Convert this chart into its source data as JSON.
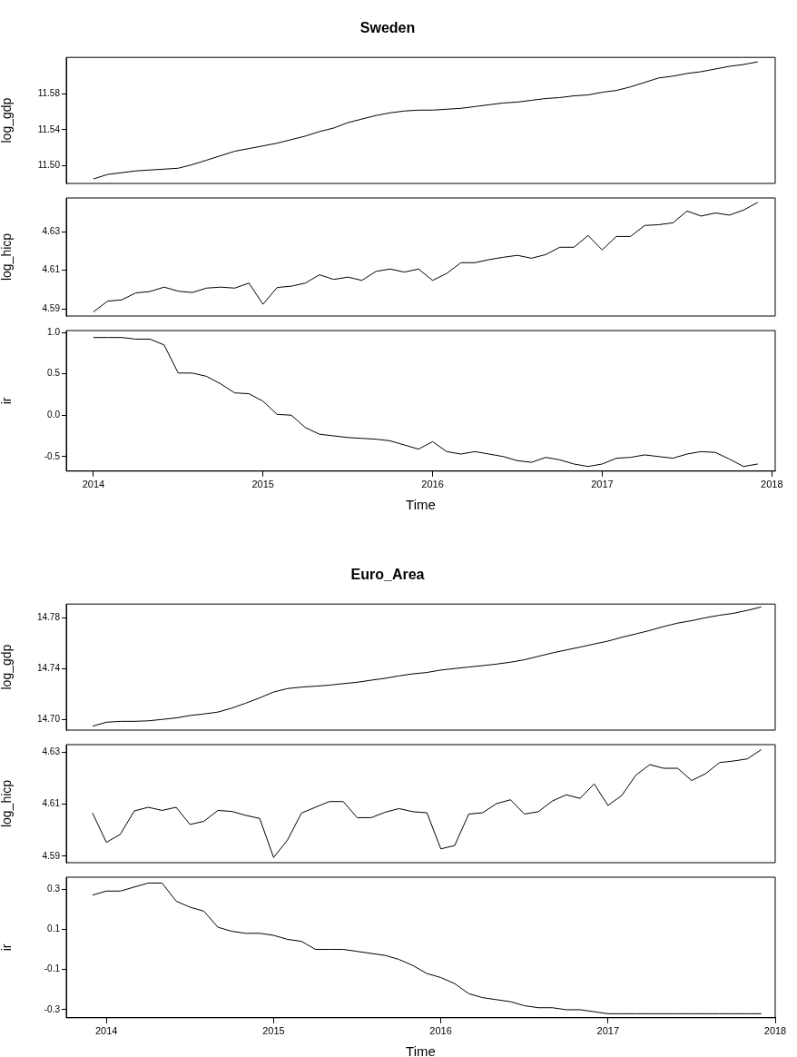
{
  "chart_data": [
    {
      "type": "line",
      "title": "Sweden",
      "ylabel": "log_gdp",
      "color": "#000000",
      "marker": "none",
      "tick_labels": "y",
      "x": [
        2014,
        2014.083,
        2014.167,
        2014.25,
        2014.333,
        2014.417,
        2014.5,
        2014.583,
        2014.667,
        2014.75,
        2014.833,
        2014.917,
        2015,
        2015.083,
        2015.167,
        2015.25,
        2015.333,
        2015.417,
        2015.5,
        2015.583,
        2015.667,
        2015.75,
        2015.833,
        2015.917,
        2016,
        2016.083,
        2016.167,
        2016.25,
        2016.333,
        2016.417,
        2016.5,
        2016.583,
        2016.667,
        2016.75,
        2016.833,
        2016.917,
        2017,
        2017.083,
        2017.167,
        2017.25,
        2017.333,
        2017.417,
        2017.5,
        2017.583,
        2017.667,
        2017.75,
        2017.833,
        2017.917
      ],
      "values": [
        11.485,
        11.49,
        11.492,
        11.494,
        11.495,
        11.496,
        11.497,
        11.501,
        11.506,
        11.511,
        11.516,
        11.519,
        11.522,
        11.525,
        11.529,
        11.533,
        11.538,
        11.542,
        11.548,
        11.552,
        11.556,
        11.559,
        11.561,
        11.562,
        11.562,
        11.563,
        11.564,
        11.566,
        11.568,
        11.57,
        11.571,
        11.573,
        11.575,
        11.576,
        11.578,
        11.579,
        11.582,
        11.584,
        11.588,
        11.593,
        11.598,
        11.6,
        11.603,
        11.605,
        11.608,
        11.611,
        11.613,
        11.616
      ],
      "xlim": [
        2013.84,
        2018.02
      ],
      "xticks": [
        2014,
        2015,
        2016,
        2017,
        2018
      ],
      "ylim": [
        11.48,
        11.621
      ],
      "yticks": [
        {
          "value": 11.5,
          "label": "11.50"
        },
        11.54,
        11.58
      ]
    },
    {
      "type": "line",
      "ylabel": "log_hicp",
      "color": "#000000",
      "marker": "none",
      "tick_labels": "y",
      "x": [
        2014,
        2014.083,
        2014.167,
        2014.25,
        2014.333,
        2014.417,
        2014.5,
        2014.583,
        2014.667,
        2014.75,
        2014.833,
        2014.917,
        2015,
        2015.083,
        2015.167,
        2015.25,
        2015.333,
        2015.417,
        2015.5,
        2015.583,
        2015.667,
        2015.75,
        2015.833,
        2015.917,
        2016,
        2016.083,
        2016.167,
        2016.25,
        2016.333,
        2016.417,
        2016.5,
        2016.583,
        2016.667,
        2016.75,
        2016.833,
        2016.917,
        2017,
        2017.083,
        2017.167,
        2017.25,
        2017.333,
        2017.417,
        2017.5,
        2017.583,
        2017.667,
        2017.75,
        2017.833,
        2017.917
      ],
      "values": [
        4.5884,
        4.594,
        4.5947,
        4.5983,
        4.599,
        4.6013,
        4.5992,
        4.5985,
        4.6008,
        4.6013,
        4.6008,
        4.6034,
        4.5924,
        4.6011,
        4.6018,
        4.6034,
        4.6077,
        4.6053,
        4.6065,
        4.6048,
        4.6095,
        4.6107,
        4.6091,
        4.6107,
        4.6048,
        4.6084,
        4.614,
        4.614,
        4.6156,
        4.6168,
        4.6178,
        4.6163,
        4.6182,
        4.622,
        4.622,
        4.6281,
        4.6206,
        4.6276,
        4.6276,
        4.6333,
        4.6337,
        4.6347,
        4.6408,
        4.6382,
        4.6398,
        4.6387,
        4.6413,
        4.6453
      ],
      "xlim": [
        2013.84,
        2018.02
      ],
      "xticks": [
        2014,
        2015,
        2016,
        2017,
        2018
      ],
      "ylim": [
        4.5863,
        4.6476
      ],
      "yticks": [
        4.59,
        4.61,
        4.63
      ]
    },
    {
      "type": "line",
      "ylabel": "ir",
      "xlabel": "Time",
      "color": "#000000",
      "marker": "none",
      "x": [
        2014,
        2014.083,
        2014.167,
        2014.25,
        2014.333,
        2014.417,
        2014.5,
        2014.583,
        2014.667,
        2014.75,
        2014.833,
        2014.917,
        2015,
        2015.083,
        2015.167,
        2015.25,
        2015.333,
        2015.417,
        2015.5,
        2015.583,
        2015.667,
        2015.75,
        2015.833,
        2015.917,
        2016,
        2016.083,
        2016.167,
        2016.25,
        2016.333,
        2016.417,
        2016.5,
        2016.583,
        2016.667,
        2016.75,
        2016.833,
        2016.917,
        2017,
        2017.083,
        2017.167,
        2017.25,
        2017.333,
        2017.417,
        2017.5,
        2017.583,
        2017.667,
        2017.75,
        2017.833,
        2017.917
      ],
      "values": [
        0.94,
        0.94,
        0.94,
        0.92,
        0.92,
        0.85,
        0.51,
        0.51,
        0.47,
        0.38,
        0.27,
        0.26,
        0.17,
        0.01,
        0.0,
        -0.15,
        -0.23,
        -0.25,
        -0.27,
        -0.28,
        -0.29,
        -0.31,
        -0.36,
        -0.41,
        -0.32,
        -0.44,
        -0.47,
        -0.44,
        -0.47,
        -0.5,
        -0.55,
        -0.57,
        -0.51,
        -0.54,
        -0.59,
        -0.62,
        -0.59,
        -0.52,
        -0.51,
        -0.48,
        -0.5,
        -0.52,
        -0.47,
        -0.44,
        -0.45,
        -0.53,
        -0.62,
        -0.59
      ],
      "xlim": [
        2013.84,
        2018.02
      ],
      "xticks": [
        2014,
        2015,
        2016,
        2017,
        2018
      ],
      "ylim": [
        -0.676,
        1.024
      ],
      "yticks": [
        {
          "value": -0.5,
          "label": "-0.5"
        },
        {
          "value": 0,
          "label": "0.0"
        },
        {
          "value": 0.5,
          "label": "0.5"
        },
        {
          "value": 1,
          "label": "1.0"
        }
      ]
    },
    {
      "type": "line",
      "title": "Euro_Area",
      "ylabel": "log_gdp",
      "color": "#000000",
      "marker": "none",
      "tick_labels": "y",
      "x": [
        2013.917,
        2014,
        2014.083,
        2014.167,
        2014.25,
        2014.333,
        2014.417,
        2014.5,
        2014.583,
        2014.667,
        2014.75,
        2014.833,
        2014.917,
        2015,
        2015.083,
        2015.167,
        2015.25,
        2015.333,
        2015.417,
        2015.5,
        2015.583,
        2015.667,
        2015.75,
        2015.833,
        2015.917,
        2016,
        2016.083,
        2016.167,
        2016.25,
        2016.333,
        2016.417,
        2016.5,
        2016.583,
        2016.667,
        2016.75,
        2016.833,
        2016.917,
        2017,
        2017.083,
        2017.167,
        2017.25,
        2017.333,
        2017.417,
        2017.5,
        2017.583,
        2017.667,
        2017.75,
        2017.833,
        2017.917
      ],
      "values": [
        14.6946,
        14.6977,
        14.6984,
        14.6984,
        14.6988,
        14.6999,
        14.7011,
        14.703,
        14.7042,
        14.7057,
        14.7088,
        14.7127,
        14.7169,
        14.7215,
        14.7242,
        14.7254,
        14.7261,
        14.7269,
        14.7281,
        14.7292,
        14.7308,
        14.7323,
        14.7342,
        14.7358,
        14.7369,
        14.7388,
        14.74,
        14.7412,
        14.7423,
        14.7435,
        14.745,
        14.7469,
        14.7496,
        14.7523,
        14.7546,
        14.7569,
        14.7593,
        14.7616,
        14.7646,
        14.7673,
        14.77,
        14.7731,
        14.7758,
        14.7777,
        14.78,
        14.782,
        14.7835,
        14.7858,
        14.7885
      ],
      "xlim": [
        2013.76,
        2018.0
      ],
      "xticks": [
        2014,
        2015,
        2016,
        2017,
        2018
      ],
      "ylim": [
        14.6915,
        14.7908
      ],
      "yticks": [
        {
          "value": 14.7,
          "label": "14.70"
        },
        14.74,
        14.78
      ]
    },
    {
      "type": "line",
      "ylabel": "log_hicp",
      "color": "#000000",
      "marker": "none",
      "tick_labels": "y",
      "x": [
        2013.917,
        2014,
        2014.083,
        2014.167,
        2014.25,
        2014.333,
        2014.417,
        2014.5,
        2014.583,
        2014.667,
        2014.75,
        2014.833,
        2014.917,
        2015,
        2015.083,
        2015.167,
        2015.25,
        2015.333,
        2015.417,
        2015.5,
        2015.583,
        2015.667,
        2015.75,
        2015.833,
        2015.917,
        2016,
        2016.083,
        2016.167,
        2016.25,
        2016.333,
        2016.417,
        2016.5,
        2016.583,
        2016.667,
        2016.75,
        2016.833,
        2016.917,
        2017,
        2017.083,
        2017.167,
        2017.25,
        2017.333,
        2017.417,
        2017.5,
        2017.583,
        2017.667,
        2017.75,
        2017.833,
        2017.917
      ],
      "values": [
        4.6066,
        4.5953,
        4.5984,
        4.6074,
        4.6088,
        4.6076,
        4.6088,
        4.6022,
        4.6034,
        4.6076,
        4.6072,
        4.6057,
        4.6045,
        4.5895,
        4.5962,
        4.6066,
        4.6088,
        4.611,
        4.611,
        4.6048,
        4.6048,
        4.6069,
        4.6083,
        4.6071,
        4.6067,
        4.5928,
        4.5941,
        4.6062,
        4.6067,
        4.6102,
        4.6117,
        4.6062,
        4.6071,
        4.6112,
        4.6136,
        4.6122,
        4.6178,
        4.6095,
        4.6134,
        4.6212,
        4.6252,
        4.6238,
        4.6238,
        4.6191,
        4.6217,
        4.626,
        4.6266,
        4.6274,
        4.631
      ],
      "xlim": [
        2013.76,
        2018.0
      ],
      "xticks": [
        2014,
        2015,
        2016,
        2017,
        2018
      ],
      "ylim": [
        4.5875,
        4.6329
      ],
      "yticks": [
        4.59,
        4.61,
        4.63
      ]
    },
    {
      "type": "line",
      "ylabel": "ir",
      "xlabel": "Time",
      "color": "#000000",
      "marker": "none",
      "x": [
        2013.917,
        2014,
        2014.083,
        2014.167,
        2014.25,
        2014.333,
        2014.417,
        2014.5,
        2014.583,
        2014.667,
        2014.75,
        2014.833,
        2014.917,
        2015,
        2015.083,
        2015.167,
        2015.25,
        2015.333,
        2015.417,
        2015.5,
        2015.583,
        2015.667,
        2015.75,
        2015.833,
        2015.917,
        2016,
        2016.083,
        2016.167,
        2016.25,
        2016.333,
        2016.417,
        2016.5,
        2016.583,
        2016.667,
        2016.75,
        2016.833,
        2016.917,
        2017,
        2017.083,
        2017.167,
        2017.25,
        2017.333,
        2017.417,
        2017.5,
        2017.583,
        2017.667,
        2017.75,
        2017.833,
        2017.917
      ],
      "values": [
        0.27,
        0.29,
        0.29,
        0.31,
        0.33,
        0.33,
        0.24,
        0.21,
        0.19,
        0.11,
        0.09,
        0.08,
        0.08,
        0.07,
        0.05,
        0.04,
        0.0,
        0.0,
        0.0,
        -0.01,
        -0.02,
        -0.03,
        -0.05,
        -0.08,
        -0.12,
        -0.14,
        -0.17,
        -0.22,
        -0.24,
        -0.25,
        -0.26,
        -0.28,
        -0.29,
        -0.29,
        -0.3,
        -0.3,
        -0.31,
        -0.32,
        -0.32,
        -0.32,
        -0.32,
        -0.32,
        -0.32,
        -0.32,
        -0.32,
        -0.32,
        -0.32,
        -0.32,
        -0.32
      ],
      "xlim": [
        2013.76,
        2018.0
      ],
      "xticks": [
        2014,
        2015,
        2016,
        2017,
        2018
      ],
      "ylim": [
        -0.34,
        0.359
      ],
      "yticks": [
        -0.3,
        -0.1,
        0.1,
        0.3
      ]
    }
  ]
}
